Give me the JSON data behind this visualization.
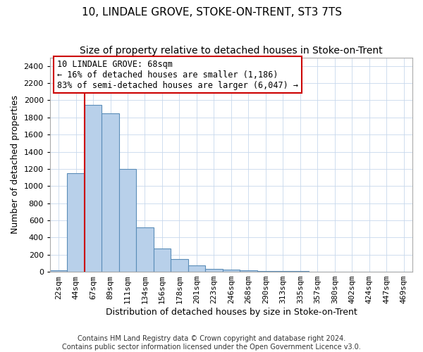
{
  "title": "10, LINDALE GROVE, STOKE-ON-TRENT, ST3 7TS",
  "subtitle": "Size of property relative to detached houses in Stoke-on-Trent",
  "xlabel": "Distribution of detached houses by size in Stoke-on-Trent",
  "ylabel": "Number of detached properties",
  "categories": [
    "22sqm",
    "44sqm",
    "67sqm",
    "89sqm",
    "111sqm",
    "134sqm",
    "156sqm",
    "178sqm",
    "201sqm",
    "223sqm",
    "246sqm",
    "268sqm",
    "290sqm",
    "313sqm",
    "335sqm",
    "357sqm",
    "380sqm",
    "402sqm",
    "424sqm",
    "447sqm",
    "469sqm"
  ],
  "values": [
    20,
    1150,
    1950,
    1850,
    1200,
    520,
    270,
    150,
    75,
    35,
    25,
    20,
    12,
    8,
    5,
    4,
    4,
    4,
    3,
    2,
    2
  ],
  "bar_color": "#b8d0ea",
  "bar_edge_color": "#5b8db8",
  "red_line_index": 2,
  "red_line_color": "#cc0000",
  "annotation_line1": "10 LINDALE GROVE: 68sqm",
  "annotation_line2": "← 16% of detached houses are smaller (1,186)",
  "annotation_line3": "83% of semi-detached houses are larger (6,047) →",
  "annotation_box_color": "#ffffff",
  "annotation_box_edge": "#cc0000",
  "ylim": [
    0,
    2500
  ],
  "yticks": [
    0,
    200,
    400,
    600,
    800,
    1000,
    1200,
    1400,
    1600,
    1800,
    2000,
    2200,
    2400
  ],
  "footnote1": "Contains HM Land Registry data © Crown copyright and database right 2024.",
  "footnote2": "Contains public sector information licensed under the Open Government Licence v3.0.",
  "title_fontsize": 11,
  "subtitle_fontsize": 10,
  "xlabel_fontsize": 9,
  "ylabel_fontsize": 9,
  "tick_fontsize": 8,
  "annotation_fontsize": 8.5,
  "footnote_fontsize": 7
}
